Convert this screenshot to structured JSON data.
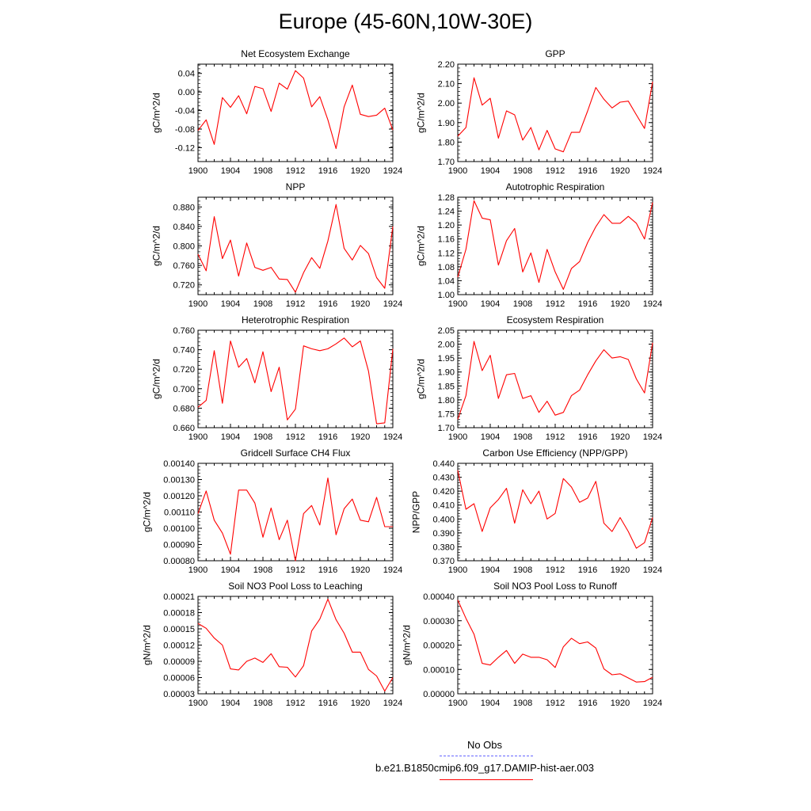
{
  "figure": {
    "title": "Europe (45-60N,10W-30E)",
    "x_ticks": [
      1900,
      1904,
      1908,
      1912,
      1916,
      1920,
      1924
    ],
    "colors": {
      "model": "#ff0000",
      "obs": "#6666ff",
      "axis": "#000000"
    }
  },
  "legend": [
    {
      "label": "No Obs",
      "style": "dashed",
      "color": "#6666ff"
    },
    {
      "label": "b.e21.B1850cmip6.f09_g17.DAMIP-hist-aer.003",
      "style": "solid",
      "color": "#ff0000"
    }
  ],
  "chart_data": [
    {
      "type": "line",
      "title": "Net Ecosystem Exchange",
      "xlabel": "",
      "ylabel": "gC/m^2/d",
      "xlim": [
        1900,
        1924
      ],
      "ylim": [
        -0.15,
        0.06
      ],
      "yticks": [
        "0.04",
        "0.00",
        "-0.04",
        "-0.08",
        "-0.12"
      ],
      "ytick_values": [
        0.04,
        0.0,
        -0.04,
        -0.08,
        -0.12
      ],
      "x": [
        1900,
        1901,
        1902,
        1903,
        1904,
        1905,
        1906,
        1907,
        1908,
        1909,
        1910,
        1911,
        1912,
        1913,
        1914,
        1915,
        1916,
        1917,
        1918,
        1919,
        1920,
        1921,
        1922,
        1923,
        1924
      ],
      "series": [
        {
          "values": [
            -0.083,
            -0.06,
            -0.113,
            -0.012,
            -0.033,
            -0.008,
            -0.047,
            0.012,
            0.007,
            -0.042,
            0.019,
            0.006,
            0.046,
            0.03,
            -0.032,
            -0.01,
            -0.06,
            -0.122,
            -0.032,
            0.015,
            -0.048,
            -0.053,
            -0.05,
            -0.035,
            -0.082
          ]
        }
      ]
    },
    {
      "type": "line",
      "title": "GPP",
      "xlabel": "",
      "ylabel": "gC/m^2/d",
      "xlim": [
        1900,
        1924
      ],
      "ylim": [
        1.7,
        2.2
      ],
      "yticks": [
        "2.20",
        "2.10",
        "2.00",
        "1.90",
        "1.80",
        "1.70"
      ],
      "ytick_values": [
        2.2,
        2.1,
        2.0,
        1.9,
        1.8,
        1.7
      ],
      "x": [
        1900,
        1901,
        1902,
        1903,
        1904,
        1905,
        1906,
        1907,
        1908,
        1909,
        1910,
        1911,
        1912,
        1913,
        1914,
        1915,
        1916,
        1917,
        1918,
        1919,
        1920,
        1921,
        1922,
        1923,
        1924
      ],
      "series": [
        {
          "values": [
            1.83,
            1.875,
            2.13,
            1.99,
            2.025,
            1.82,
            1.96,
            1.94,
            1.81,
            1.875,
            1.76,
            1.86,
            1.765,
            1.75,
            1.85,
            1.85,
            1.96,
            2.08,
            2.02,
            1.975,
            2.005,
            2.01,
            1.94,
            1.87,
            2.11
          ]
        }
      ]
    },
    {
      "type": "line",
      "title": "NPP",
      "xlabel": "",
      "ylabel": "gC/m^2/d",
      "xlim": [
        1900,
        1924
      ],
      "ylim": [
        0.7,
        0.9
      ],
      "yticks": [
        "0.880",
        "0.840",
        "0.800",
        "0.760",
        "0.720"
      ],
      "ytick_values": [
        0.88,
        0.84,
        0.8,
        0.76,
        0.72
      ],
      "x": [
        1900,
        1901,
        1902,
        1903,
        1904,
        1905,
        1906,
        1907,
        1908,
        1909,
        1910,
        1911,
        1912,
        1913,
        1914,
        1915,
        1916,
        1917,
        1918,
        1919,
        1920,
        1921,
        1922,
        1923,
        1924
      ],
      "series": [
        {
          "values": [
            0.783,
            0.749,
            0.86,
            0.774,
            0.812,
            0.738,
            0.806,
            0.756,
            0.75,
            0.756,
            0.732,
            0.731,
            0.705,
            0.745,
            0.776,
            0.754,
            0.81,
            0.885,
            0.795,
            0.771,
            0.801,
            0.784,
            0.735,
            0.713,
            0.84
          ]
        }
      ]
    },
    {
      "type": "line",
      "title": "Autotrophic Respiration",
      "xlabel": "",
      "ylabel": "gC/m^2/d",
      "xlim": [
        1900,
        1924
      ],
      "ylim": [
        1.0,
        1.28
      ],
      "yticks": [
        "1.28",
        "1.24",
        "1.20",
        "1.16",
        "1.12",
        "1.08",
        "1.04",
        "1.00"
      ],
      "ytick_values": [
        1.28,
        1.24,
        1.2,
        1.16,
        1.12,
        1.08,
        1.04,
        1.0
      ],
      "x": [
        1900,
        1901,
        1902,
        1903,
        1904,
        1905,
        1906,
        1907,
        1908,
        1909,
        1910,
        1911,
        1912,
        1913,
        1914,
        1915,
        1916,
        1917,
        1918,
        1919,
        1920,
        1921,
        1922,
        1923,
        1924
      ],
      "series": [
        {
          "values": [
            1.05,
            1.13,
            1.27,
            1.22,
            1.215,
            1.085,
            1.155,
            1.19,
            1.065,
            1.12,
            1.035,
            1.13,
            1.065,
            1.015,
            1.075,
            1.095,
            1.15,
            1.195,
            1.23,
            1.205,
            1.205,
            1.225,
            1.205,
            1.16,
            1.265
          ]
        }
      ]
    },
    {
      "type": "line",
      "title": "Heterotrophic Respiration",
      "xlabel": "",
      "ylabel": "gC/m^2/d",
      "xlim": [
        1900,
        1924
      ],
      "ylim": [
        0.66,
        0.76
      ],
      "yticks": [
        "0.760",
        "0.740",
        "0.720",
        "0.700",
        "0.680",
        "0.660"
      ],
      "ytick_values": [
        0.76,
        0.74,
        0.72,
        0.7,
        0.68,
        0.66
      ],
      "x": [
        1900,
        1901,
        1902,
        1903,
        1904,
        1905,
        1906,
        1907,
        1908,
        1909,
        1910,
        1911,
        1912,
        1913,
        1914,
        1915,
        1916,
        1917,
        1918,
        1919,
        1920,
        1921,
        1922,
        1923,
        1924
      ],
      "series": [
        {
          "values": [
            0.681,
            0.688,
            0.739,
            0.685,
            0.749,
            0.722,
            0.731,
            0.706,
            0.738,
            0.697,
            0.722,
            0.668,
            0.679,
            0.744,
            0.741,
            0.739,
            0.741,
            0.746,
            0.752,
            0.743,
            0.749,
            0.718,
            0.664,
            0.665,
            0.741
          ]
        }
      ]
    },
    {
      "type": "line",
      "title": "Ecosystem Respiration",
      "xlabel": "",
      "ylabel": "gC/m^2/d",
      "xlim": [
        1900,
        1924
      ],
      "ylim": [
        1.7,
        2.05
      ],
      "yticks": [
        "2.05",
        "2.00",
        "1.95",
        "1.90",
        "1.85",
        "1.80",
        "1.75",
        "1.70"
      ],
      "ytick_values": [
        2.05,
        2.0,
        1.95,
        1.9,
        1.85,
        1.8,
        1.75,
        1.7
      ],
      "x": [
        1900,
        1901,
        1902,
        1903,
        1904,
        1905,
        1906,
        1907,
        1908,
        1909,
        1910,
        1911,
        1912,
        1913,
        1914,
        1915,
        1916,
        1917,
        1918,
        1919,
        1920,
        1921,
        1922,
        1923,
        1924
      ],
      "series": [
        {
          "values": [
            1.73,
            1.815,
            2.01,
            1.905,
            1.96,
            1.805,
            1.89,
            1.895,
            1.805,
            1.815,
            1.755,
            1.795,
            1.745,
            1.755,
            1.815,
            1.835,
            1.89,
            1.94,
            1.98,
            1.95,
            1.955,
            1.945,
            1.875,
            1.825,
            2.005
          ]
        }
      ]
    },
    {
      "type": "line",
      "title": "Gridcell Surface CH4 Flux",
      "xlabel": "",
      "ylabel": "gC/m^2/d",
      "xlim": [
        1900,
        1924
      ],
      "ylim": [
        0.0008,
        0.0014
      ],
      "yticks": [
        "0.00140",
        "0.00130",
        "0.00120",
        "0.00110",
        "0.00100",
        "0.00090",
        "0.00080"
      ],
      "ytick_values": [
        0.0014,
        0.0013,
        0.0012,
        0.0011,
        0.001,
        0.0009,
        0.0008
      ],
      "x": [
        1900,
        1901,
        1902,
        1903,
        1904,
        1905,
        1906,
        1907,
        1908,
        1909,
        1910,
        1911,
        1912,
        1913,
        1914,
        1915,
        1916,
        1917,
        1918,
        1919,
        1920,
        1921,
        1922,
        1923,
        1924
      ],
      "series": [
        {
          "values": [
            0.00109,
            0.00123,
            0.00105,
            0.00097,
            0.00084,
            0.001235,
            0.001235,
            0.001155,
            0.000945,
            0.001125,
            0.00093,
            0.00105,
            0.0008,
            0.00109,
            0.00114,
            0.00102,
            0.00131,
            0.00096,
            0.00112,
            0.00118,
            0.00105,
            0.00104,
            0.00119,
            0.00101,
            0.00101
          ]
        }
      ]
    },
    {
      "type": "line",
      "title": "Carbon Use Efficiency (NPP/GPP)",
      "xlabel": "",
      "ylabel": "NPP/GPP",
      "xlim": [
        1900,
        1924
      ],
      "ylim": [
        0.37,
        0.44
      ],
      "yticks": [
        "0.440",
        "0.430",
        "0.420",
        "0.410",
        "0.400",
        "0.390",
        "0.380",
        "0.370"
      ],
      "ytick_values": [
        0.44,
        0.43,
        0.42,
        0.41,
        0.4,
        0.39,
        0.38,
        0.37
      ],
      "x": [
        1900,
        1901,
        1902,
        1903,
        1904,
        1905,
        1906,
        1907,
        1908,
        1909,
        1910,
        1911,
        1912,
        1913,
        1914,
        1915,
        1916,
        1917,
        1918,
        1919,
        1920,
        1921,
        1922,
        1923,
        1924
      ],
      "series": [
        {
          "values": [
            0.435,
            0.407,
            0.411,
            0.391,
            0.408,
            0.414,
            0.422,
            0.397,
            0.421,
            0.411,
            0.42,
            0.4,
            0.404,
            0.429,
            0.423,
            0.412,
            0.415,
            0.427,
            0.397,
            0.391,
            0.401,
            0.391,
            0.379,
            0.383,
            0.401
          ]
        }
      ]
    },
    {
      "type": "line",
      "title": "Soil NO3 Pool Loss to Leaching",
      "xlabel": "",
      "ylabel": "gN/m^2/d",
      "xlim": [
        1900,
        1924
      ],
      "ylim": [
        3e-05,
        0.00021
      ],
      "yticks": [
        "0.00021",
        "0.00018",
        "0.00015",
        "0.00012",
        "0.00009",
        "0.00006",
        "0.00003"
      ],
      "ytick_values": [
        0.00021,
        0.00018,
        0.00015,
        0.00012,
        9e-05,
        6e-05,
        3e-05
      ],
      "x": [
        1900,
        1901,
        1902,
        1903,
        1904,
        1905,
        1906,
        1907,
        1908,
        1909,
        1910,
        1911,
        1912,
        1913,
        1914,
        1915,
        1916,
        1917,
        1918,
        1919,
        1920,
        1921,
        1922,
        1923,
        1924
      ],
      "series": [
        {
          "values": [
            0.00016,
            0.000151,
            0.000133,
            0.00012,
            7.6e-05,
            7.4e-05,
            9e-05,
            9.6e-05,
            8.8e-05,
            0.000104,
            8e-05,
            7.9e-05,
            6.1e-05,
            8.2e-05,
            0.000146,
            0.000168,
            0.000205,
            0.000167,
            0.000142,
            0.000107,
            0.000107,
            7.5e-05,
            6.3e-05,
            3.5e-05,
            6e-05
          ]
        }
      ]
    },
    {
      "type": "line",
      "title": "Soil NO3 Pool Loss to Runoff",
      "xlabel": "",
      "ylabel": "gN/m^2/d",
      "xlim": [
        1900,
        1924
      ],
      "ylim": [
        0.0,
        0.0004
      ],
      "yticks": [
        "0.00040",
        "0.00030",
        "0.00020",
        "0.00010",
        "0.00000"
      ],
      "ytick_values": [
        0.0004,
        0.0003,
        0.0002,
        0.0001,
        0.0
      ],
      "x": [
        1900,
        1901,
        1902,
        1903,
        1904,
        1905,
        1906,
        1907,
        1908,
        1909,
        1910,
        1911,
        1912,
        1913,
        1914,
        1915,
        1916,
        1917,
        1918,
        1919,
        1920,
        1921,
        1922,
        1923,
        1924
      ],
      "series": [
        {
          "values": [
            0.000385,
            0.00031,
            0.000245,
            0.000125,
            0.000118,
            0.00015,
            0.000178,
            0.000125,
            0.000163,
            0.00015,
            0.00015,
            0.00014,
            0.000108,
            0.000193,
            0.000228,
            0.000206,
            0.000213,
            0.000188,
            0.000102,
            7.8e-05,
            8.2e-05,
            6.5e-05,
            4.8e-05,
            5e-05,
            6.8e-05
          ]
        }
      ]
    }
  ]
}
